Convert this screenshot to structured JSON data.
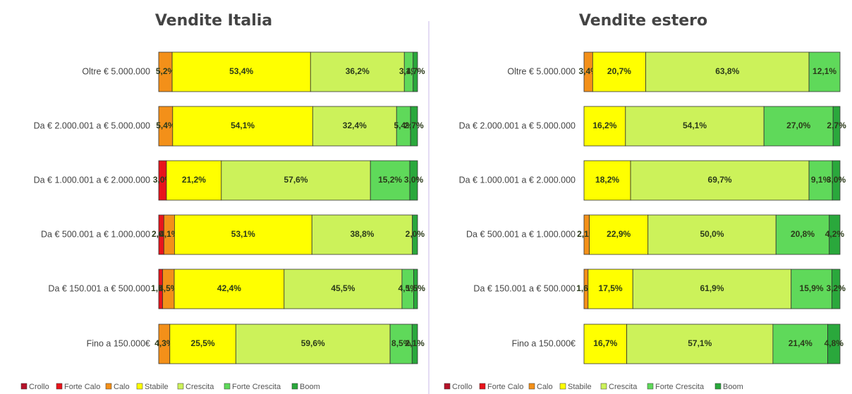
{
  "chart_data": [
    {
      "type": "bar",
      "title": "Vendite Italia",
      "categories": [
        "Oltre € 5.000.000",
        "Da € 2.000.001 a € 5.000.000",
        "Da € 1.000.001 a € 2.000.000",
        "Da € 500.001 a € 1.000.000",
        "Da € 150.001 a € 500.000",
        "Fino a 150.000€"
      ],
      "series": [
        {
          "name": "Crollo",
          "color": "#b5122a",
          "values": [
            null,
            null,
            null,
            null,
            null,
            null
          ],
          "value_labels": [
            null,
            null,
            null,
            null,
            null,
            null
          ]
        },
        {
          "name": "Forte Calo",
          "color": "#e8141c",
          "values": [
            null,
            null,
            3.0,
            2.0,
            1.5,
            null
          ],
          "value_labels": [
            null,
            null,
            "3,0%",
            "2,0%",
            "1,5%",
            null
          ]
        },
        {
          "name": "Calo",
          "color": "#f39019",
          "values": [
            5.2,
            5.4,
            null,
            4.1,
            4.5,
            4.3
          ],
          "value_labels": [
            "5,2%",
            "5,4%",
            null,
            "4,1%",
            "4,5%",
            "4,3%"
          ]
        },
        {
          "name": "Stabile",
          "color": "#ffff00",
          "values": [
            53.4,
            54.1,
            21.2,
            53.1,
            42.4,
            25.5
          ],
          "value_labels": [
            "53,4%",
            "54,1%",
            "21,2%",
            "53,1%",
            "42,4%",
            "25,5%"
          ]
        },
        {
          "name": "Crescita",
          "color": "#ccf25a",
          "values": [
            36.2,
            32.4,
            57.6,
            38.8,
            45.5,
            59.6
          ],
          "value_labels": [
            "36,2%",
            "32,4%",
            "57,6%",
            "38,8%",
            "45,5%",
            "59,6%"
          ]
        },
        {
          "name": "Forte Crescita",
          "color": "#5fd95a",
          "values": [
            3.4,
            5.4,
            15.2,
            null,
            4.5,
            8.5
          ],
          "value_labels": [
            "3,4%",
            "5,4%",
            "15,2%",
            null,
            "4,5%",
            "8,5%"
          ]
        },
        {
          "name": "Boom",
          "color": "#2aa83c",
          "values": [
            1.7,
            2.7,
            3.0,
            2.0,
            1.5,
            2.1
          ],
          "value_labels": [
            "1,7%",
            "2,7%",
            "3,0%",
            "2,0%",
            "1,5%",
            "2,1%"
          ]
        }
      ]
    },
    {
      "type": "bar",
      "title": "Vendite estero",
      "categories": [
        "Oltre € 5.000.000",
        "Da € 2.000.001 a € 5.000.000",
        "Da € 1.000.001 a € 2.000.000",
        "Da € 500.001 a € 1.000.000",
        "Da € 150.001 a € 500.000",
        "Fino a 150.000€"
      ],
      "series": [
        {
          "name": "Crollo",
          "color": "#b5122a",
          "values": [
            null,
            null,
            null,
            null,
            null,
            null
          ],
          "value_labels": [
            null,
            null,
            null,
            null,
            null,
            null
          ]
        },
        {
          "name": "Forte Calo",
          "color": "#e8141c",
          "values": [
            null,
            null,
            null,
            null,
            null,
            null
          ],
          "value_labels": [
            null,
            null,
            null,
            null,
            null,
            null
          ]
        },
        {
          "name": "Calo",
          "color": "#f39019",
          "values": [
            3.4,
            null,
            null,
            2.1,
            1.6,
            null
          ],
          "value_labels": [
            "3,4%",
            null,
            null,
            "2,1%",
            "1,6%",
            null
          ]
        },
        {
          "name": "Stabile",
          "color": "#ffff00",
          "values": [
            20.7,
            16.2,
            18.2,
            22.9,
            17.5,
            16.7
          ],
          "value_labels": [
            "20,7%",
            "16,2%",
            "18,2%",
            "22,9%",
            "17,5%",
            "16,7%"
          ]
        },
        {
          "name": "Crescita",
          "color": "#ccf25a",
          "values": [
            63.8,
            54.1,
            69.7,
            50.0,
            61.9,
            57.1
          ],
          "value_labels": [
            "63,8%",
            "54,1%",
            "69,7%",
            "50,0%",
            "61,9%",
            "57,1%"
          ]
        },
        {
          "name": "Forte Crescita",
          "color": "#5fd95a",
          "values": [
            12.1,
            27.0,
            9.1,
            20.8,
            15.9,
            21.4
          ],
          "value_labels": [
            "12,1%",
            "27,0%",
            "9,1%",
            "20,8%",
            "15,9%",
            "21,4%"
          ]
        },
        {
          "name": "Boom",
          "color": "#2aa83c",
          "values": [
            null,
            2.7,
            3.0,
            4.2,
            3.2,
            4.8
          ],
          "value_labels": [
            null,
            "2,7%",
            "3,0%",
            "4,2%",
            "3,2%",
            "4,8%"
          ]
        }
      ]
    }
  ]
}
